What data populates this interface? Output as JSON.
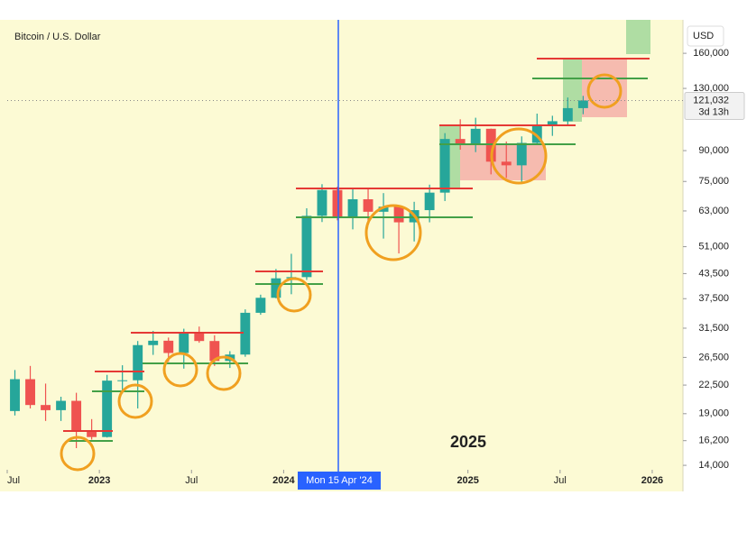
{
  "chart_data": {
    "type": "candlestick",
    "title": "Bitcoin / U.S. Dollar",
    "currency": "USD",
    "annotation": "2025",
    "crosshair_label": "Mon 15 Apr '24",
    "last_price": {
      "value": 121032,
      "label": "121,032"
    },
    "countdown": "3d 13h",
    "log_scale": true,
    "up_color": "#26a69a",
    "down_color": "#ef5350",
    "x": [
      "2022-07",
      "2022-08",
      "2022-09",
      "2022-10",
      "2022-11",
      "2022-12",
      "2023-01",
      "2023-02",
      "2023-03",
      "2023-04",
      "2023-05",
      "2023-06",
      "2023-07",
      "2023-08",
      "2023-09",
      "2023-10",
      "2023-11",
      "2023-12",
      "2024-01",
      "2024-02",
      "2024-03",
      "2024-04",
      "2024-05",
      "2024-06",
      "2024-07",
      "2024-08",
      "2024-09",
      "2024-10",
      "2024-11",
      "2024-12",
      "2025-01",
      "2025-02",
      "2025-03",
      "2025-04",
      "2025-05",
      "2025-06",
      "2025-07",
      "2025-08"
    ],
    "open": [
      19300,
      23300,
      20000,
      19400,
      20500,
      17200,
      16550,
      23100,
      23150,
      28500,
      29250,
      27200,
      30500,
      29200,
      25950,
      26950,
      34500,
      37700,
      42300,
      42600,
      61200,
      71300,
      60600,
      67500,
      62700,
      64600,
      58900,
      63300,
      70200,
      96400,
      93400,
      102400,
      84300,
      82500,
      94200,
      104600,
      107100,
      115700
    ],
    "high": [
      24600,
      25200,
      22700,
      21000,
      21500,
      18400,
      23900,
      25300,
      29200,
      31000,
      29800,
      31400,
      31800,
      30200,
      27500,
      35200,
      38400,
      44700,
      48900,
      64000,
      73800,
      72700,
      71900,
      71900,
      70000,
      65000,
      66500,
      73600,
      99800,
      108300,
      109300,
      102500,
      95000,
      97900,
      112000,
      110600,
      123200,
      124400
    ],
    "low": [
      18800,
      19600,
      18200,
      18200,
      15500,
      16300,
      16500,
      21400,
      19600,
      26900,
      25800,
      24800,
      28900,
      25200,
      24900,
      26600,
      34100,
      37600,
      38500,
      41900,
      59000,
      59600,
      56500,
      58400,
      53500,
      49000,
      52600,
      58900,
      66800,
      90500,
      89200,
      78200,
      76600,
      74500,
      93300,
      98200,
      105100,
      111600
    ],
    "close": [
      23300,
      20000,
      19400,
      20500,
      17200,
      16550,
      23100,
      23150,
      28500,
      29250,
      27200,
      30500,
      29200,
      25950,
      26950,
      34500,
      37700,
      42300,
      42600,
      61200,
      71300,
      60600,
      67500,
      62700,
      64600,
      58900,
      63300,
      70200,
      96400,
      93400,
      102400,
      84300,
      82500,
      94200,
      104600,
      107100,
      115700,
      121032
    ],
    "xlim": [
      "2022-07",
      "2026-03"
    ],
    "xticks": [
      {
        "value": "2022-07",
        "label": "Jul"
      },
      {
        "value": "2023-01",
        "label": "2023"
      },
      {
        "value": "2023-07",
        "label": "Jul"
      },
      {
        "value": "2024-01",
        "label": "2024"
      },
      {
        "value": "2025-01",
        "label": "2025"
      },
      {
        "value": "2025-07",
        "label": "Jul"
      },
      {
        "value": "2026-01",
        "label": "2026"
      }
    ],
    "ylim": [
      12000,
      195000
    ],
    "yticks": [
      {
        "value": 14000,
        "label": "14,000"
      },
      {
        "value": 16200,
        "label": "16,200"
      },
      {
        "value": 19000,
        "label": "19,000"
      },
      {
        "value": 22500,
        "label": "22,500"
      },
      {
        "value": 26500,
        "label": "26,500"
      },
      {
        "value": 31500,
        "label": "31,500"
      },
      {
        "value": 37500,
        "label": "37,500"
      },
      {
        "value": 43500,
        "label": "43,500"
      },
      {
        "value": 51000,
        "label": "51,000"
      },
      {
        "value": 63000,
        "label": "63,000"
      },
      {
        "value": 75000,
        "label": "75,000"
      },
      {
        "value": 90000,
        "label": "90,000"
      },
      {
        "value": 130000,
        "label": "130,000"
      },
      {
        "value": 160000,
        "label": "160,000"
      }
    ]
  }
}
